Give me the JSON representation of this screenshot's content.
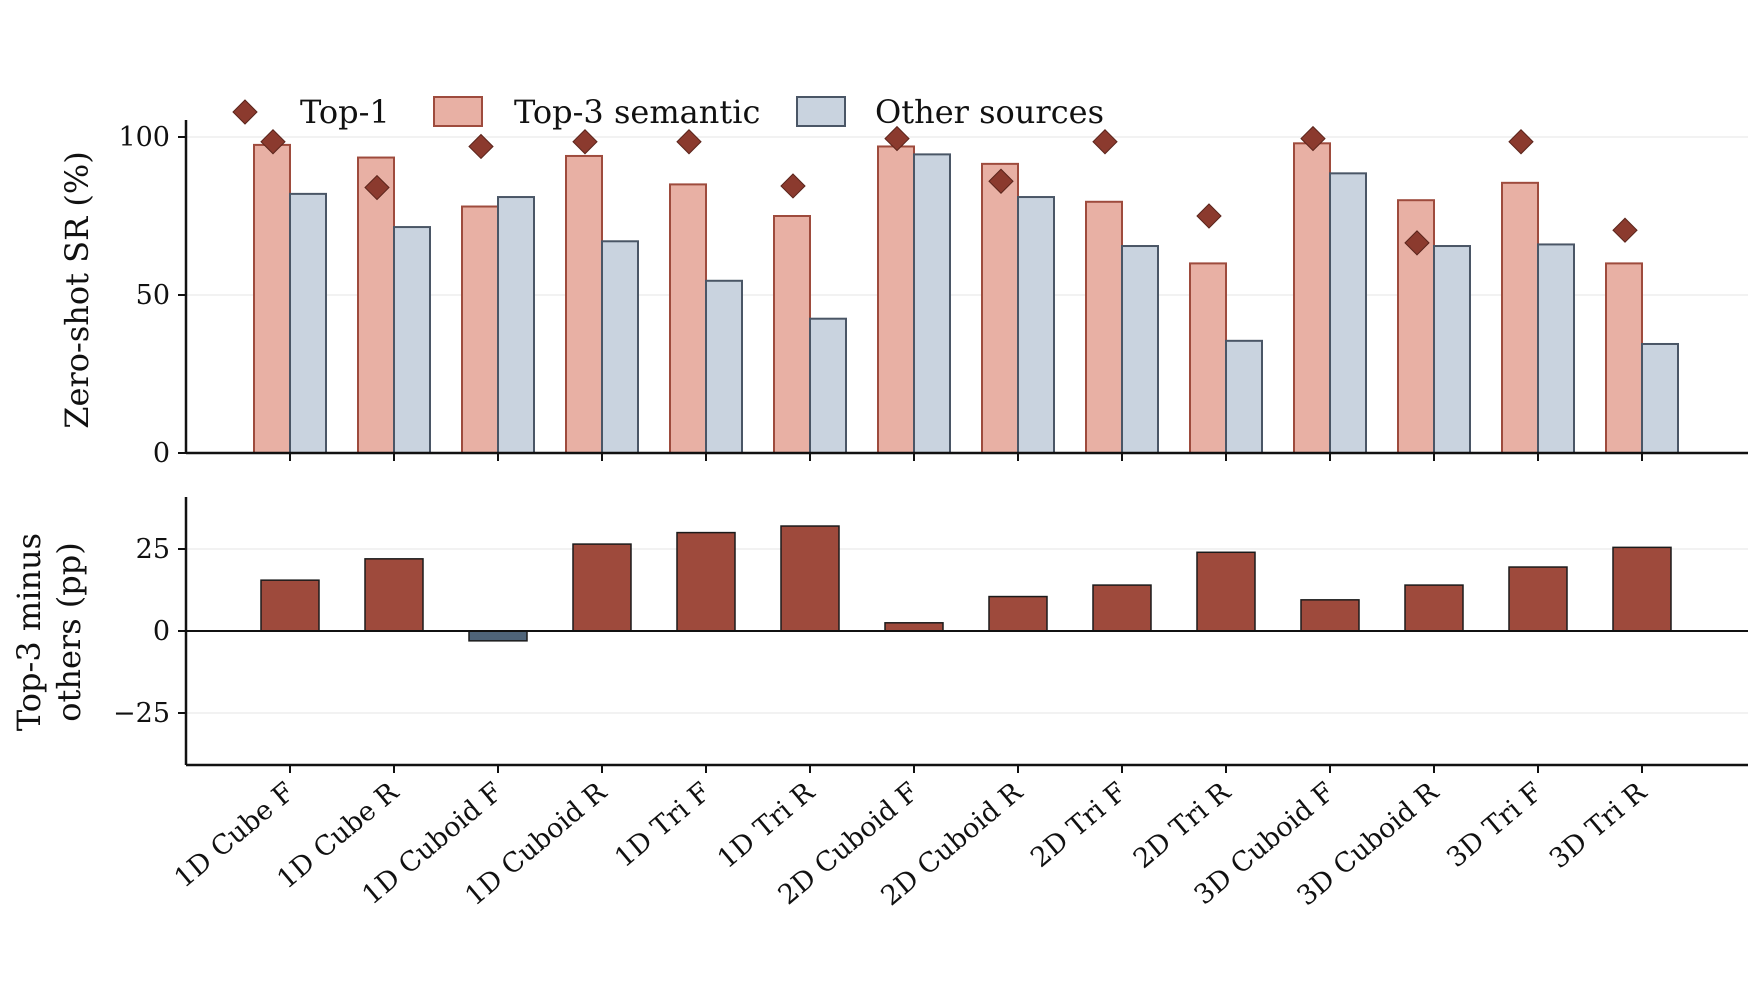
{
  "chart_data": [
    {
      "type": "bar",
      "ylabel": "Zero-shot SR (%)",
      "ylim": [
        0,
        100
      ],
      "yticks": [
        0,
        50,
        100
      ],
      "grid": true,
      "legend": {
        "placement": "top-left",
        "entries": [
          "Top-1",
          "Top-3 semantic",
          "Other sources"
        ]
      },
      "categories": [
        "1D Cube F",
        "1D Cube R",
        "1D Cuboid F",
        "1D Cuboid R",
        "1D Tri F",
        "1D Tri R",
        "2D Cuboid F",
        "2D Cuboid R",
        "2D Tri F",
        "2D Tri R",
        "3D Cuboid F",
        "3D Cuboid R",
        "3D Tri F",
        "3D Tri R"
      ],
      "series": [
        {
          "name": "Top-3 semantic",
          "kind": "bar",
          "color": "#e8b0a4",
          "edge": "#9e4b3d",
          "values": [
            97.5,
            93.5,
            78,
            94,
            85,
            75,
            97,
            91.5,
            79.5,
            60,
            98,
            80,
            85.5,
            60
          ]
        },
        {
          "name": "Other sources",
          "kind": "bar",
          "color": "#c9d3df",
          "edge": "#4a5666",
          "values": [
            82,
            71.5,
            81,
            67,
            54.5,
            42.5,
            94.5,
            81,
            65.5,
            35.5,
            88.5,
            65.5,
            66,
            34.5
          ]
        },
        {
          "name": "Top-1",
          "kind": "marker",
          "color": "#8b3a2e",
          "values": [
            98.5,
            84,
            97,
            98.5,
            98.5,
            84.5,
            99.5,
            86,
            98.5,
            75,
            99.5,
            66.5,
            98.5,
            70.5
          ]
        }
      ]
    },
    {
      "type": "bar",
      "ylabel": "Top-3 minus others (pp)",
      "ylabel_lines": [
        "Top-3 minus",
        "others (pp)"
      ],
      "ylim": [
        -40,
        40
      ],
      "yticks": [
        -25,
        0,
        25
      ],
      "ytick_labels": [
        "−25",
        "0",
        "25"
      ],
      "grid": true,
      "categories": [
        "1D Cube F",
        "1D Cube R",
        "1D Cuboid F",
        "1D Cuboid R",
        "1D Tri F",
        "1D Tri R",
        "2D Cuboid F",
        "2D Cuboid R",
        "2D Tri F",
        "2D Tri R",
        "3D Cuboid F",
        "3D Cuboid R",
        "3D Tri F",
        "3D Tri R"
      ],
      "values": [
        15.5,
        22,
        -3,
        26.5,
        30,
        32,
        2.5,
        10.5,
        14,
        24,
        9.5,
        14,
        19.5,
        25.5
      ],
      "colors": {
        "positive": "#9e4a3c",
        "negative": "#4f6479"
      }
    }
  ]
}
